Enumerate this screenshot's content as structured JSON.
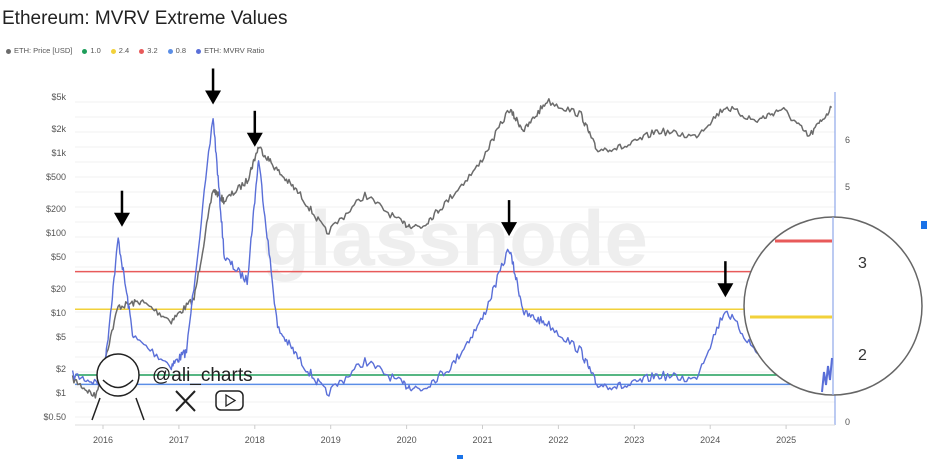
{
  "chart_data": {
    "type": "line",
    "title": "Ethereum: MVRV Extreme Values",
    "legend": [
      {
        "name": "ETH: Price [USD]",
        "color": "#6b6b6b"
      },
      {
        "name": "1.0",
        "color": "#1e9e5a"
      },
      {
        "name": "2.4",
        "color": "#f2d13a"
      },
      {
        "name": "3.2",
        "color": "#e85a5a"
      },
      {
        "name": "0.8",
        "color": "#5b8ee6"
      },
      {
        "name": "ETH: MVRV Ratio",
        "color": "#5a6fd8"
      }
    ],
    "legend_placement": "top-left",
    "x_ticks": [
      "2016",
      "2017",
      "2018",
      "2019",
      "2020",
      "2021",
      "2022",
      "2023",
      "2024",
      "2025"
    ],
    "y_left": {
      "scale": "log",
      "range": [
        0.5,
        5000
      ],
      "ticks": [
        "$5k",
        "$2k",
        "$1k",
        "$500",
        "$200",
        "$100",
        "$50",
        "$20",
        "$10",
        "$5",
        "$2",
        "$1",
        "$0.50"
      ]
    },
    "y_right": {
      "scale": "linear",
      "range": [
        0,
        6.5
      ],
      "ticks": [
        "6",
        "5",
        "0"
      ]
    },
    "magnifier_ticks": [
      "3",
      "2"
    ],
    "thresholds": [
      {
        "name": "3.2",
        "value": 3.2,
        "color": "#e85a5a"
      },
      {
        "name": "2.4",
        "value": 2.4,
        "color": "#f2d13a"
      },
      {
        "name": "1.0",
        "value": 1.0,
        "color": "#1e9e5a"
      },
      {
        "name": "0.8",
        "value": 0.8,
        "color": "#5b8ee6"
      }
    ],
    "series": [
      {
        "name": "ETH: Price [USD]",
        "axis": "left",
        "x": [
          2015.6,
          2015.9,
          2016.2,
          2016.5,
          2016.9,
          2017.2,
          2017.45,
          2017.6,
          2017.9,
          2018.05,
          2018.3,
          2018.6,
          2018.95,
          2019.45,
          2019.95,
          2020.2,
          2020.5,
          2020.95,
          2021.35,
          2021.55,
          2021.85,
          2022.3,
          2022.5,
          2022.9,
          2023.3,
          2023.8,
          2024.2,
          2024.6,
          2024.95,
          2025.3,
          2025.6
        ],
        "y": [
          1.5,
          0.9,
          12,
          14,
          8,
          15,
          350,
          250,
          450,
          1200,
          600,
          300,
          100,
          300,
          130,
          120,
          230,
          700,
          3500,
          1900,
          4500,
          3000,
          1100,
          1200,
          1900,
          1600,
          3800,
          2500,
          3600,
          1600,
          3700
        ]
      },
      {
        "name": "ETH: MVRV Ratio",
        "axis": "right",
        "x": [
          2015.6,
          2016.0,
          2016.2,
          2016.4,
          2016.9,
          2017.1,
          2017.45,
          2017.6,
          2017.9,
          2018.05,
          2018.3,
          2018.6,
          2018.95,
          2019.45,
          2019.95,
          2020.2,
          2020.6,
          2021.0,
          2021.35,
          2021.55,
          2021.85,
          2022.3,
          2022.5,
          2022.9,
          2023.3,
          2023.8,
          2024.2,
          2024.6,
          2025.0,
          2025.3,
          2025.6
        ],
        "y": [
          1.0,
          0.8,
          3.9,
          1.8,
          1.2,
          1.5,
          6.5,
          3.5,
          3.0,
          5.6,
          2.0,
          1.3,
          0.6,
          1.3,
          0.8,
          0.7,
          1.2,
          2.2,
          3.7,
          2.3,
          2.1,
          1.5,
          0.8,
          0.75,
          1.0,
          0.9,
          2.4,
          1.5,
          1.6,
          0.8,
          1.8
        ]
      }
    ],
    "annotations": {
      "arrow_dates": [
        2016.25,
        2017.45,
        2018.0,
        2021.35,
        2024.2
      ]
    },
    "grid": true
  },
  "watermark": "glassnode",
  "signature": {
    "handle": "@ali_charts"
  }
}
